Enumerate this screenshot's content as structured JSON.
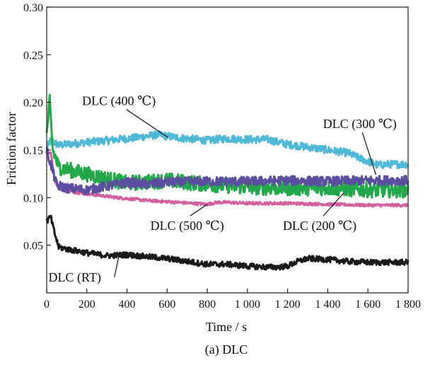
{
  "chart_data": {
    "type": "line",
    "title": "",
    "caption": "(a) DLC",
    "xlabel": "Time / s",
    "ylabel": "Friction factor",
    "xlim": [
      0,
      1800
    ],
    "ylim": [
      0,
      0.3
    ],
    "x_ticks": [
      0,
      200,
      400,
      600,
      800,
      1000,
      1200,
      1400,
      1600,
      1800
    ],
    "x_tick_labels": [
      "0",
      "200",
      "400",
      "600",
      "800",
      "1 000",
      "1 200",
      "1 400",
      "1 600",
      "1 800"
    ],
    "y_ticks": [
      0.05,
      0.1,
      0.15,
      0.2,
      0.25,
      0.3
    ],
    "y_tick_labels": [
      "0.05",
      "0.10",
      "0.15",
      "0.20",
      "0.25",
      "0.30"
    ],
    "series": [
      {
        "name": "DLC (400 ℃)",
        "color": "#4fb8d6",
        "noise": 0.004,
        "points": [
          [
            0,
            0.152
          ],
          [
            20,
            0.16
          ],
          [
            60,
            0.155
          ],
          [
            150,
            0.157
          ],
          [
            300,
            0.16
          ],
          [
            450,
            0.163
          ],
          [
            550,
            0.166
          ],
          [
            650,
            0.163
          ],
          [
            800,
            0.16
          ],
          [
            900,
            0.162
          ],
          [
            1000,
            0.161
          ],
          [
            1100,
            0.161
          ],
          [
            1200,
            0.156
          ],
          [
            1300,
            0.153
          ],
          [
            1400,
            0.15
          ],
          [
            1500,
            0.147
          ],
          [
            1550,
            0.142
          ],
          [
            1600,
            0.138
          ],
          [
            1650,
            0.134
          ],
          [
            1700,
            0.135
          ],
          [
            1800,
            0.135
          ]
        ]
      },
      {
        "name": "DLC (500 ℃)",
        "color": "#d2609f",
        "noise": 0.0015,
        "points": [
          [
            0,
            0.145
          ],
          [
            20,
            0.148
          ],
          [
            40,
            0.118
          ],
          [
            60,
            0.11
          ],
          [
            100,
            0.107
          ],
          [
            200,
            0.104
          ],
          [
            350,
            0.1
          ],
          [
            500,
            0.097
          ],
          [
            650,
            0.095
          ],
          [
            800,
            0.093
          ],
          [
            850,
            0.095
          ],
          [
            900,
            0.095
          ],
          [
            1000,
            0.094
          ],
          [
            1200,
            0.094
          ],
          [
            1400,
            0.093
          ],
          [
            1600,
            0.092
          ],
          [
            1800,
            0.092
          ]
        ]
      },
      {
        "name": "DLC (200 ℃)",
        "color": "#22a84a",
        "noise": 0.008,
        "points": [
          [
            0,
            0.165
          ],
          [
            15,
            0.2
          ],
          [
            30,
            0.15
          ],
          [
            60,
            0.132
          ],
          [
            150,
            0.127
          ],
          [
            300,
            0.12
          ],
          [
            400,
            0.115
          ],
          [
            600,
            0.118
          ],
          [
            800,
            0.114
          ],
          [
            1000,
            0.111
          ],
          [
            1200,
            0.11
          ],
          [
            1400,
            0.11
          ],
          [
            1600,
            0.108
          ],
          [
            1800,
            0.108
          ]
        ]
      },
      {
        "name": "DLC (300 ℃)",
        "color": "#5b4ea0",
        "noise": 0.005,
        "points": [
          [
            0,
            0.15
          ],
          [
            20,
            0.135
          ],
          [
            50,
            0.113
          ],
          [
            100,
            0.11
          ],
          [
            200,
            0.108
          ],
          [
            300,
            0.112
          ],
          [
            400,
            0.116
          ],
          [
            500,
            0.114
          ],
          [
            600,
            0.116
          ],
          [
            800,
            0.117
          ],
          [
            1000,
            0.117
          ],
          [
            1200,
            0.118
          ],
          [
            1400,
            0.117
          ],
          [
            1600,
            0.118
          ],
          [
            1800,
            0.118
          ]
        ]
      },
      {
        "name": "DLC (RT)",
        "color": "#1a1a1a",
        "noise": 0.003,
        "points": [
          [
            0,
            0.075
          ],
          [
            20,
            0.08
          ],
          [
            40,
            0.062
          ],
          [
            60,
            0.048
          ],
          [
            100,
            0.046
          ],
          [
            200,
            0.042
          ],
          [
            300,
            0.039
          ],
          [
            400,
            0.04
          ],
          [
            500,
            0.038
          ],
          [
            600,
            0.036
          ],
          [
            700,
            0.033
          ],
          [
            800,
            0.03
          ],
          [
            900,
            0.03
          ],
          [
            1000,
            0.028
          ],
          [
            1100,
            0.027
          ],
          [
            1150,
            0.027
          ],
          [
            1200,
            0.028
          ],
          [
            1250,
            0.033
          ],
          [
            1300,
            0.036
          ],
          [
            1400,
            0.035
          ],
          [
            1500,
            0.033
          ],
          [
            1600,
            0.032
          ],
          [
            1800,
            0.032
          ]
        ]
      }
    ],
    "annotations": [
      {
        "text": "DLC (400 ℃)",
        "series": "DLC (400 ℃)",
        "label_at": [
          360,
          0.197
        ],
        "arrow_to": [
          605,
          0.163
        ]
      },
      {
        "text": "DLC (300 ℃)",
        "series": "DLC (300 ℃)",
        "label_at": [
          1560,
          0.173
        ],
        "arrow_to": [
          1640,
          0.124
        ]
      },
      {
        "text": "DLC (500 ℃)",
        "series": "DLC (500 ℃)",
        "label_at": [
          700,
          0.066
        ],
        "arrow_to": [
          800,
          0.093
        ]
      },
      {
        "text": "DLC (200 ℃)",
        "series": "DLC (200 ℃)",
        "label_at": [
          1360,
          0.066
        ],
        "arrow_to": [
          1480,
          0.105
        ]
      },
      {
        "text": "DLC (RT)",
        "series": "DLC (RT)",
        "label_at": [
          140,
          0.012
        ],
        "arrow_to": [
          360,
          0.039
        ]
      }
    ]
  }
}
